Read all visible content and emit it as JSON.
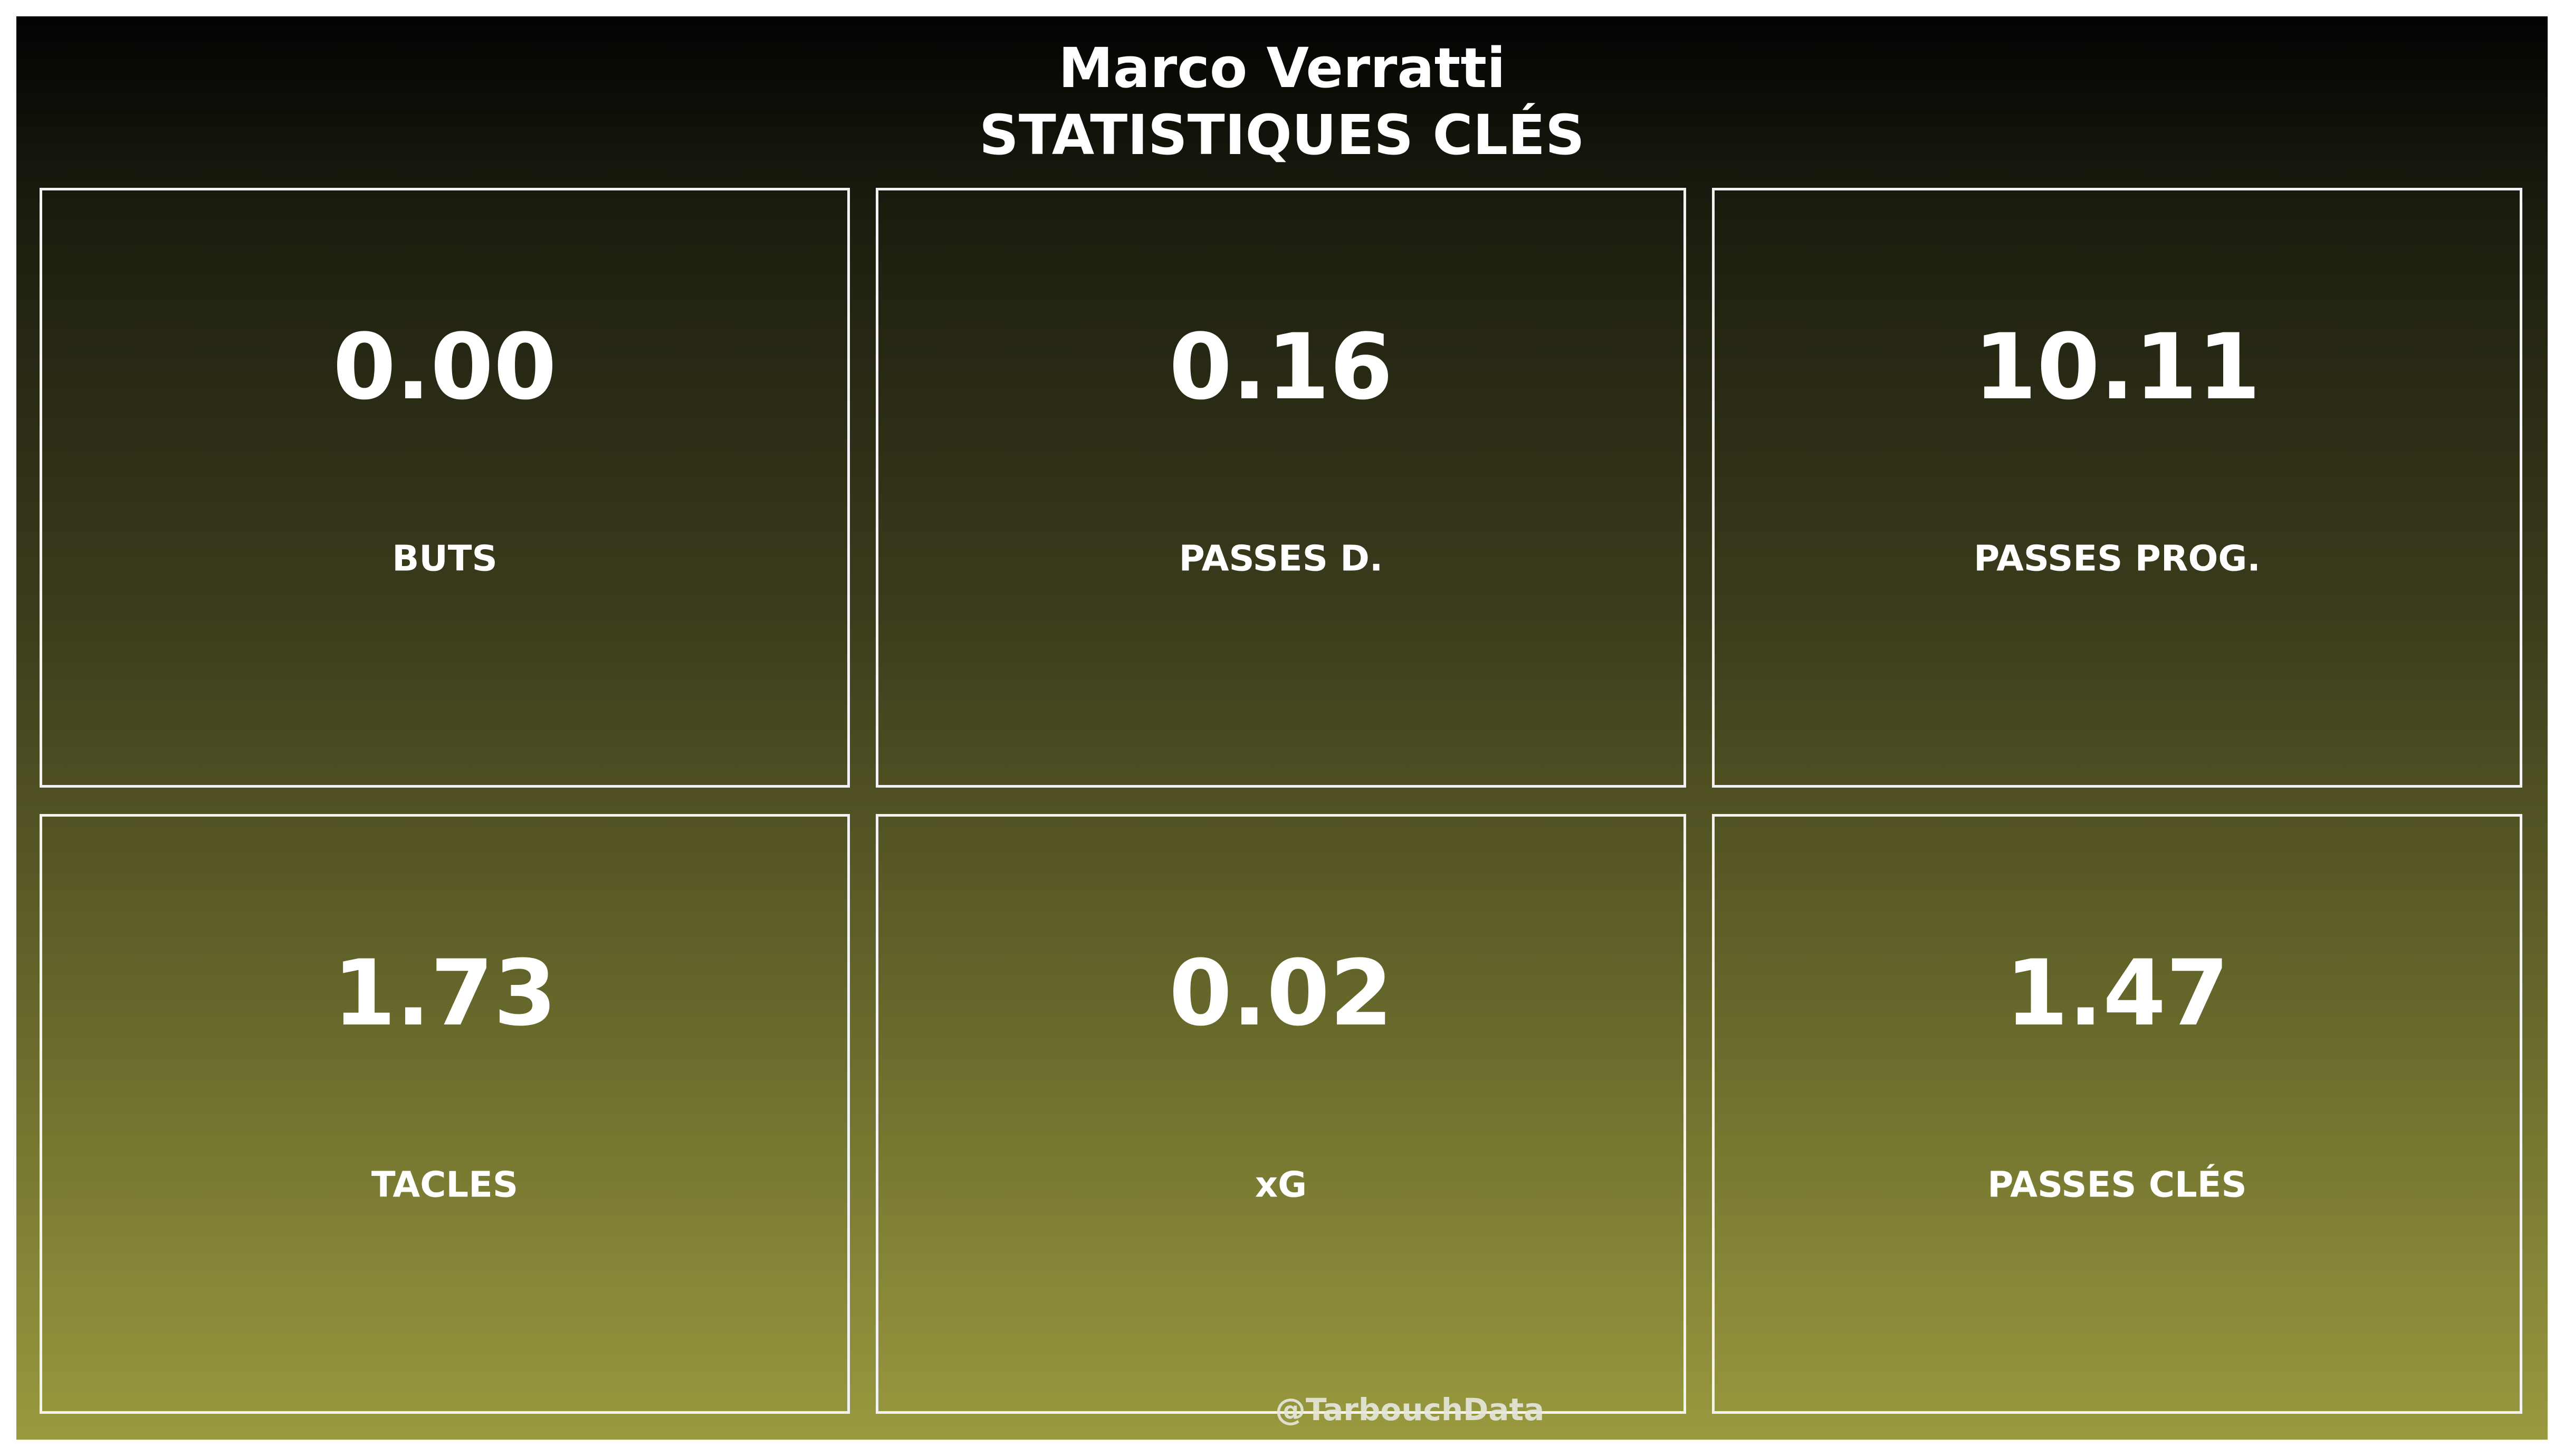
{
  "header": {
    "player_name": "Marco Verratti",
    "subtitle": "STATISTIQUES CLÉS"
  },
  "stats": [
    {
      "value": "0.00",
      "label": "BUTS"
    },
    {
      "value": "0.16",
      "label": "PASSES D."
    },
    {
      "value": "10.11",
      "label": "PASSES PROG."
    },
    {
      "value": "1.73",
      "label": "TACLES"
    },
    {
      "value": "0.02",
      "label": "xG"
    },
    {
      "value": "1.47",
      "label": "PASSES CLÉS"
    }
  ],
  "watermark": "@TarbouchData",
  "colors": {
    "background_top": "#020302",
    "background_bottom": "#99993f",
    "text": "#ffffff",
    "card_border": "#f2f2f2"
  }
}
